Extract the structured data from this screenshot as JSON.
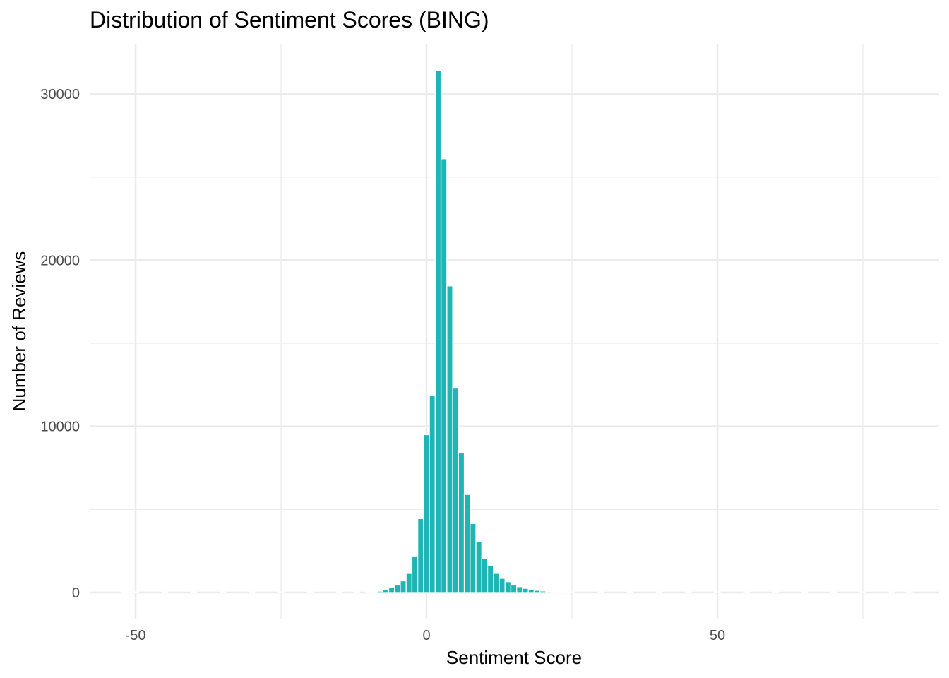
{
  "chart_data": {
    "type": "bar",
    "title": "Distribution of Sentiment Scores (BING)",
    "xlabel": "Sentiment Score",
    "ylabel": "Number of Reviews",
    "xlim": [
      -54,
      88
    ],
    "ylim": [
      0,
      32000
    ],
    "x_ticks": [
      -50,
      0,
      50
    ],
    "x_tick_labels": [
      "-50",
      "0",
      "50"
    ],
    "x_minor_ticks": [
      -25,
      25,
      75
    ],
    "y_ticks": [
      0,
      10000,
      20000,
      30000
    ],
    "y_tick_labels": [
      "0",
      "10000",
      "20000",
      "30000"
    ],
    "y_minor_ticks": [
      5000,
      15000,
      25000
    ],
    "grid": true,
    "legend": "none",
    "bar_color": "#1fb5b5",
    "bin_width": 1,
    "x": [
      -52,
      -51,
      -50,
      -45,
      -40,
      -35,
      -30,
      -25,
      -20,
      -15,
      -12,
      -10,
      -9,
      -8,
      -7,
      -6,
      -5,
      -4,
      -3,
      -2,
      -1,
      0,
      1,
      2,
      3,
      4,
      5,
      6,
      7,
      8,
      9,
      10,
      11,
      12,
      13,
      14,
      15,
      16,
      17,
      18,
      19,
      20,
      21,
      22,
      23,
      24,
      25,
      30,
      35,
      40,
      45,
      50,
      55,
      60,
      65,
      70,
      75,
      80,
      83
    ],
    "values": [
      3,
      3,
      2,
      2,
      2,
      3,
      3,
      5,
      8,
      12,
      20,
      35,
      50,
      80,
      160,
      300,
      450,
      700,
      1150,
      2200,
      4450,
      9500,
      11850,
      31400,
      26100,
      18450,
      12300,
      8400,
      5900,
      4150,
      3050,
      2050,
      1600,
      1150,
      850,
      650,
      450,
      350,
      250,
      170,
      130,
      90,
      60,
      45,
      30,
      25,
      20,
      12,
      8,
      6,
      5,
      4,
      3,
      3,
      2,
      2,
      2,
      2,
      2
    ]
  }
}
